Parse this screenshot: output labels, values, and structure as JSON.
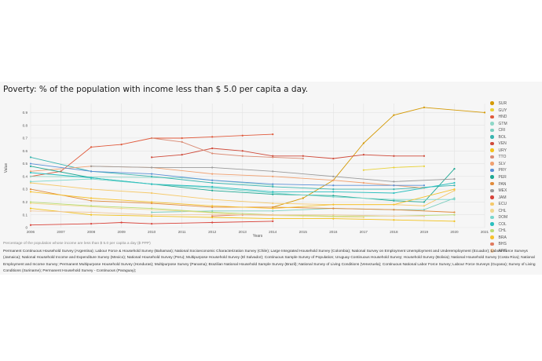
{
  "page": {
    "title": "Poverty: % of the population with income less than $ 5.0 per capita a day.",
    "caption": "Percentage of the population whose income are less than $ 5.0 per capita a day ($ PPP)",
    "sources": "Permanent Continuous Household Survey (Argentina); Labour Force & Household Survey (Bahamas); National Socioeconomic Characterization Survey (Chile); Large Integrated Household Survey (Colombia); National Survey on Employment Unemployment and Underemployment (Ecuador); Labour Force Surveys (Jamaica); National Household Income and Expenditure Survey (Mexico); National Household Survey (Peru); Multipurpose Household Survey (El Salvador); Continuous Sample Survey of Population; Uruguay Continuous Household Survey; Household Survey (Bolivia); National Household Survey (Costa Rica); National Employment and Income Survey; Permanent Multipurpose Household Survey (Honduras); Multipurpose Survey (Panama); Brazilian National Household Sample Survey (Brazil); National Survey of Living Conditions (Venezuela); Continuous National Labor Force Survey; Labour Force Surveys (Guyana); Survey of Living Conditions (Suriname); Permanent Household Survey - Continuous (Paraguay);"
  },
  "chart_data": {
    "type": "line",
    "xlabel": "Years",
    "ylabel": "Value",
    "xlim": [
      2006,
      2021
    ],
    "ylim": [
      0,
      0.97
    ],
    "x_ticks": [
      2006,
      2007,
      2008,
      2009,
      2010,
      2011,
      2012,
      2013,
      2014,
      2015,
      2016,
      2017,
      2018,
      2019,
      2020,
      2021
    ],
    "y_ticks": [
      0,
      0.1,
      0.2,
      0.3,
      0.4,
      0.5,
      0.6,
      0.7,
      0.8,
      0.9
    ],
    "y_tick_labels": [
      "0",
      "0.1",
      "0.2",
      "0.3",
      "0.4",
      "0.5",
      "0.6",
      "0.7",
      "0.8",
      "0.9"
    ],
    "series": [
      {
        "name": "SUR",
        "color": "#d49a06",
        "x": [
          2014,
          2015,
          2016,
          2017,
          2018,
          2019,
          2021
        ],
        "values": [
          0.16,
          0.23,
          0.37,
          0.66,
          0.88,
          0.94,
          0.9
        ]
      },
      {
        "name": "GUY",
        "color": "#e8d23a",
        "x": [
          2017,
          2018,
          2019
        ],
        "values": [
          0.45,
          0.47,
          0.48
        ]
      },
      {
        "name": "HND",
        "color": "#e05a3c",
        "x": [
          2006,
          2007,
          2008,
          2009,
          2010,
          2011,
          2012,
          2013,
          2014
        ],
        "values": [
          0.4,
          0.44,
          0.63,
          0.65,
          0.7,
          0.7,
          0.71,
          0.72,
          0.73
        ]
      },
      {
        "name": "GTM",
        "color": "#8fd8c8",
        "x": [
          2006,
          2011,
          2014
        ],
        "values": [
          0.4,
          0.39,
          0.33
        ]
      },
      {
        "name": "CRI",
        "color": "#7ccfc0",
        "x": [
          2010,
          2012,
          2014,
          2016,
          2018,
          2019,
          2020
        ],
        "values": [
          0.12,
          0.13,
          0.13,
          0.15,
          0.14,
          0.14,
          0.23
        ]
      },
      {
        "name": "BOL",
        "color": "#39b5b0",
        "x": [
          2006,
          2008,
          2010,
          2012,
          2014,
          2016,
          2018,
          2020
        ],
        "values": [
          0.55,
          0.44,
          0.4,
          0.35,
          0.32,
          0.3,
          0.3,
          0.33
        ]
      },
      {
        "name": "VEN",
        "color": "#cf4a3a",
        "x": [
          2010,
          2011,
          2012,
          2013,
          2014,
          2015,
          2016,
          2017,
          2018,
          2019
        ],
        "values": [
          0.55,
          0.57,
          0.62,
          0.6,
          0.56,
          0.56,
          0.54,
          0.57,
          0.56,
          0.56
        ]
      },
      {
        "name": "URY",
        "color": "#f2c21b",
        "x": [
          2006,
          2008,
          2010,
          2012,
          2014,
          2016,
          2018,
          2020
        ],
        "values": [
          0.15,
          0.1,
          0.09,
          0.08,
          0.07,
          0.07,
          0.06,
          0.05
        ]
      },
      {
        "name": "TTO",
        "color": "#d98a73",
        "x": [
          2010,
          2011,
          2012,
          2013,
          2014,
          2015
        ],
        "values": [
          0.7,
          0.67,
          0.58,
          0.56,
          0.55,
          0.54
        ]
      },
      {
        "name": "SLV",
        "color": "#f0a070",
        "x": [
          2006,
          2008,
          2010,
          2012,
          2014,
          2016,
          2017,
          2018,
          2019
        ],
        "values": [
          0.44,
          0.48,
          0.47,
          0.42,
          0.4,
          0.37,
          0.35,
          0.33,
          0.31
        ]
      },
      {
        "name": "PRY",
        "color": "#5a8fd6",
        "x": [
          2006,
          2008,
          2010,
          2012,
          2014,
          2016,
          2018,
          2019
        ],
        "values": [
          0.5,
          0.44,
          0.42,
          0.37,
          0.34,
          0.33,
          0.33,
          0.33
        ]
      },
      {
        "name": "PER",
        "color": "#1fa894",
        "x": [
          2006,
          2008,
          2010,
          2012,
          2014,
          2016,
          2018,
          2019,
          2020
        ],
        "values": [
          0.48,
          0.39,
          0.34,
          0.29,
          0.26,
          0.25,
          0.21,
          0.2,
          0.46
        ]
      },
      {
        "name": "PAN",
        "color": "#e08a3a",
        "x": [
          2006,
          2008,
          2010,
          2012,
          2014,
          2016,
          2018,
          2020
        ],
        "values": [
          0.3,
          0.21,
          0.19,
          0.16,
          0.16,
          0.15,
          0.14,
          0.12
        ]
      },
      {
        "name": "MEX",
        "color": "#9a9a9a",
        "x": [
          2008,
          2010,
          2012,
          2014,
          2016,
          2018,
          2020
        ],
        "values": [
          0.48,
          0.47,
          0.47,
          0.44,
          0.4,
          0.36,
          0.38
        ]
      },
      {
        "name": "JAM",
        "color": "#d8433a",
        "x": [
          2006,
          2008,
          2009,
          2010,
          2012,
          2014
        ],
        "values": [
          0.02,
          0.03,
          0.04,
          0.03,
          0.04,
          0.05
        ]
      },
      {
        "name": "ECU",
        "color": "#f5c96a",
        "x": [
          2006,
          2008,
          2010,
          2012,
          2014,
          2016,
          2018,
          2019,
          2020
        ],
        "values": [
          0.35,
          0.3,
          0.27,
          0.22,
          0.19,
          0.18,
          0.18,
          0.17,
          0.29
        ]
      },
      {
        "name": "CHL",
        "color": "#f0d890",
        "x": [
          2006,
          2009,
          2011,
          2013,
          2015,
          2017
        ],
        "values": [
          0.19,
          0.15,
          0.13,
          0.1,
          0.09,
          0.08
        ]
      },
      {
        "name": "DOM",
        "color": "#7ad6cc",
        "x": [
          2006,
          2008,
          2010,
          2012,
          2014,
          2016,
          2018,
          2020
        ],
        "values": [
          0.36,
          0.38,
          0.34,
          0.31,
          0.27,
          0.24,
          0.22,
          0.22
        ]
      },
      {
        "name": "COL",
        "color": "#2bbfbf",
        "x": [
          2006,
          2008,
          2010,
          2012,
          2014,
          2016,
          2018,
          2020
        ],
        "values": [
          0.43,
          0.39,
          0.34,
          0.32,
          0.28,
          0.28,
          0.27,
          0.35
        ]
      },
      {
        "name": "CHL",
        "color": "#b8dc74",
        "x": [
          2006,
          2008,
          2010,
          2012,
          2014,
          2016,
          2018,
          2020
        ],
        "values": [
          0.2,
          0.17,
          0.15,
          0.12,
          0.1,
          0.09,
          0.09,
          0.1
        ]
      },
      {
        "name": "BRA",
        "color": "#f6c12e",
        "x": [
          2006,
          2008,
          2010,
          2012,
          2014,
          2016,
          2018,
          2020
        ],
        "values": [
          0.28,
          0.23,
          0.2,
          0.17,
          0.15,
          0.18,
          0.18,
          0.3
        ]
      },
      {
        "name": "BHS",
        "color": "#e07a5f",
        "x": [
          2012,
          2013,
          2014
        ],
        "values": [
          0.09,
          0.1,
          0.1
        ]
      },
      {
        "name": "ARG",
        "color": "#f0c8a0",
        "x": [
          2006,
          2008,
          2010,
          2012,
          2014,
          2016,
          2018,
          2019
        ],
        "values": [
          0.13,
          0.12,
          0.1,
          0.1,
          0.1,
          0.1,
          0.09,
          0.09
        ]
      }
    ]
  }
}
